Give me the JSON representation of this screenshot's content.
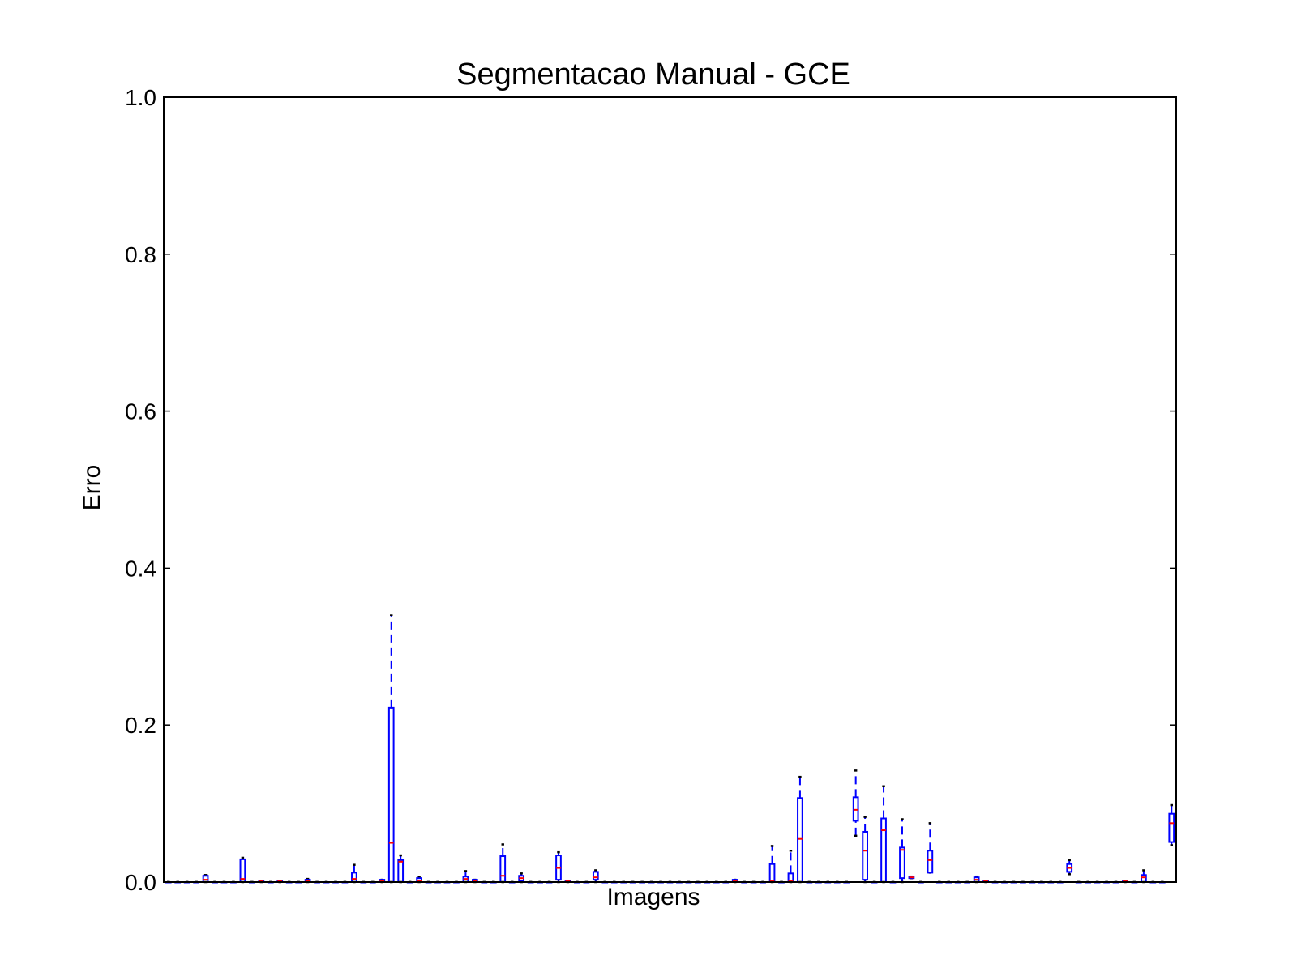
{
  "chart_data": {
    "type": "boxplot",
    "title": "Segmentacao Manual - GCE",
    "xlabel": "Imagens",
    "ylabel": "Erro",
    "ylim": [
      0,
      1.0
    ],
    "yticks": [
      "0.0",
      "0.2",
      "0.4",
      "0.6",
      "0.8",
      "1.0"
    ],
    "ytick_values": [
      0,
      0.2,
      0.4,
      0.6,
      0.8,
      1.0
    ],
    "x_tick_labels": "none",
    "grid": false,
    "legend": "none",
    "n_boxes": 109,
    "colors": {
      "box": "#0000ff",
      "median": "#ff0000",
      "cap": "#000000",
      "axes": "#000000"
    },
    "boxes": [
      {
        "index": 4,
        "min": 0,
        "q1": 0,
        "median": 0.003,
        "q3": 0.008,
        "max": 0.009
      },
      {
        "index": 8,
        "min": 0,
        "q1": 0,
        "median": 0.004,
        "q3": 0.029,
        "max": 0.031
      },
      {
        "index": 10,
        "min": 0,
        "q1": 0,
        "median": 0.001,
        "q3": 0.001,
        "max": 0.001
      },
      {
        "index": 12,
        "min": 0,
        "q1": 0,
        "median": 0.001,
        "q3": 0.001,
        "max": 0.001
      },
      {
        "index": 15,
        "min": 0,
        "q1": 0,
        "median": 0.001,
        "q3": 0.003,
        "max": 0.004
      },
      {
        "index": 20,
        "min": 0,
        "q1": 0,
        "median": 0.004,
        "q3": 0.012,
        "max": 0.022
      },
      {
        "index": 23,
        "min": 0,
        "q1": 0,
        "median": 0.002,
        "q3": 0.003,
        "max": 0.003
      },
      {
        "index": 24,
        "min": 0,
        "q1": 0,
        "median": 0.05,
        "q3": 0.222,
        "max": 0.34
      },
      {
        "index": 25,
        "min": 0,
        "q1": 0,
        "median": 0.026,
        "q3": 0.028,
        "max": 0.034
      },
      {
        "index": 27,
        "min": 0,
        "q1": 0,
        "median": 0.002,
        "q3": 0.005,
        "max": 0.006
      },
      {
        "index": 32,
        "min": 0,
        "q1": 0,
        "median": 0.004,
        "q3": 0.007,
        "max": 0.014
      },
      {
        "index": 33,
        "min": 0,
        "q1": 0,
        "median": 0.002,
        "q3": 0.003,
        "max": 0.003
      },
      {
        "index": 36,
        "min": 0,
        "q1": 0,
        "median": 0.008,
        "q3": 0.033,
        "max": 0.048
      },
      {
        "index": 38,
        "min": 0,
        "q1": 0.002,
        "median": 0.005,
        "q3": 0.008,
        "max": 0.011
      },
      {
        "index": 42,
        "min": 0,
        "q1": 0.003,
        "median": 0.018,
        "q3": 0.034,
        "max": 0.038
      },
      {
        "index": 43,
        "min": 0,
        "q1": 0,
        "median": 0.001,
        "q3": 0.001,
        "max": 0.001
      },
      {
        "index": 46,
        "min": 0,
        "q1": 0.003,
        "median": 0.006,
        "q3": 0.013,
        "max": 0.015
      },
      {
        "index": 61,
        "min": 0,
        "q1": 0,
        "median": 0.001,
        "q3": 0.003,
        "max": 0.003
      },
      {
        "index": 65,
        "min": 0,
        "q1": 0,
        "median": 0.001,
        "q3": 0.023,
        "max": 0.046
      },
      {
        "index": 67,
        "min": 0,
        "q1": 0,
        "median": 0.001,
        "q3": 0.011,
        "max": 0.04
      },
      {
        "index": 68,
        "min": 0,
        "q1": 0,
        "median": 0.055,
        "q3": 0.107,
        "max": 0.134
      },
      {
        "index": 74,
        "min": 0.059,
        "q1": 0.078,
        "median": 0.092,
        "q3": 0.108,
        "max": 0.142
      },
      {
        "index": 75,
        "min": 0,
        "q1": 0.003,
        "median": 0.04,
        "q3": 0.064,
        "max": 0.083
      },
      {
        "index": 77,
        "min": 0,
        "q1": 0,
        "median": 0.066,
        "q3": 0.081,
        "max": 0.122
      },
      {
        "index": 79,
        "min": 0,
        "q1": 0.005,
        "median": 0.041,
        "q3": 0.044,
        "max": 0.08
      },
      {
        "index": 80,
        "min": 0.005,
        "q1": 0.005,
        "median": 0.006,
        "q3": 0.007,
        "max": 0.007
      },
      {
        "index": 82,
        "min": 0.012,
        "q1": 0.012,
        "median": 0.028,
        "q3": 0.04,
        "max": 0.075
      },
      {
        "index": 87,
        "min": 0,
        "q1": 0,
        "median": 0.003,
        "q3": 0.006,
        "max": 0.007
      },
      {
        "index": 88,
        "min": 0,
        "q1": 0,
        "median": 0.001,
        "q3": 0.001,
        "max": 0.001
      },
      {
        "index": 97,
        "min": 0.01,
        "q1": 0.013,
        "median": 0.018,
        "q3": 0.023,
        "max": 0.028
      },
      {
        "index": 103,
        "min": 0,
        "q1": 0,
        "median": 0.001,
        "q3": 0.001,
        "max": 0.001
      },
      {
        "index": 105,
        "min": 0,
        "q1": 0,
        "median": 0.006,
        "q3": 0.009,
        "max": 0.015
      },
      {
        "index": 108,
        "min": 0.047,
        "q1": 0.051,
        "median": 0.075,
        "q3": 0.087,
        "max": 0.098
      }
    ]
  }
}
